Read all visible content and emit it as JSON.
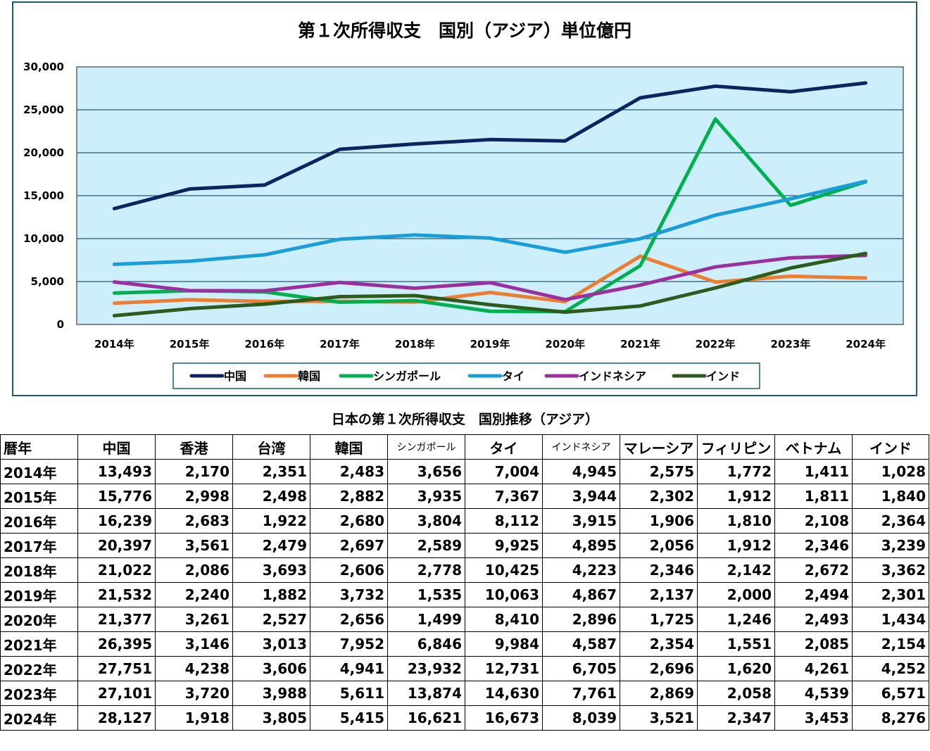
{
  "chart_data": {
    "type": "line",
    "title": "第１次所得収支　国別（アジア）単位億円",
    "categories": [
      "2014年",
      "2015年",
      "2016年",
      "2017年",
      "2018年",
      "2019年",
      "2020年",
      "2021年",
      "2022年",
      "2023年",
      "2024年"
    ],
    "ylim": [
      0,
      30000
    ],
    "yticks": [
      "0",
      "5,000",
      "10,000",
      "15,000",
      "20,000",
      "25,000",
      "30,000"
    ],
    "grid": true,
    "legend": "bottom",
    "plot_background": "#cdeefb",
    "series": [
      {
        "name": "中国",
        "color": "#0c2461",
        "values": [
          13493,
          15776,
          16239,
          20397,
          21022,
          21532,
          21377,
          26395,
          27751,
          27101,
          28127
        ]
      },
      {
        "name": "韓国",
        "color": "#ed7d31",
        "values": [
          2483,
          2882,
          2680,
          2697,
          2606,
          3732,
          2656,
          7952,
          4941,
          5611,
          5415
        ]
      },
      {
        "name": "シンガポール",
        "color": "#00b050",
        "values": [
          3656,
          3935,
          3804,
          2589,
          2778,
          1535,
          1499,
          6846,
          23932,
          13874,
          16621
        ]
      },
      {
        "name": "タイ",
        "color": "#1b9dd9",
        "values": [
          7004,
          7367,
          8112,
          9925,
          10425,
          10063,
          8410,
          9984,
          12731,
          14630,
          16673
        ]
      },
      {
        "name": "インドネシア",
        "color": "#9b2fa0",
        "values": [
          4945,
          3944,
          3915,
          4895,
          4223,
          4867,
          2896,
          4587,
          6705,
          7761,
          8039
        ]
      },
      {
        "name": "インド",
        "color": "#2e5a1c",
        "values": [
          1028,
          1840,
          2364,
          3239,
          3362,
          2301,
          1434,
          2154,
          4252,
          6571,
          8276
        ]
      }
    ]
  },
  "table": {
    "title": "日本の第１次所得収支　国別推移（アジア）",
    "headers": [
      "暦年",
      "中国",
      "香港",
      "台湾",
      "韓国",
      "シンガポール",
      "タイ",
      "インドネシア",
      "マレーシア",
      "フィリピン",
      "ベトナム",
      "インド"
    ],
    "rows": [
      [
        "2014年",
        "13,493",
        "2,170",
        "2,351",
        "2,483",
        "3,656",
        "7,004",
        "4,945",
        "2,575",
        "1,772",
        "1,411",
        "1,028"
      ],
      [
        "2015年",
        "15,776",
        "2,998",
        "2,498",
        "2,882",
        "3,935",
        "7,367",
        "3,944",
        "2,302",
        "1,912",
        "1,811",
        "1,840"
      ],
      [
        "2016年",
        "16,239",
        "2,683",
        "1,922",
        "2,680",
        "3,804",
        "8,112",
        "3,915",
        "1,906",
        "1,810",
        "2,108",
        "2,364"
      ],
      [
        "2017年",
        "20,397",
        "3,561",
        "2,479",
        "2,697",
        "2,589",
        "9,925",
        "4,895",
        "2,056",
        "1,912",
        "2,346",
        "3,239"
      ],
      [
        "2018年",
        "21,022",
        "2,086",
        "3,693",
        "2,606",
        "2,778",
        "10,425",
        "4,223",
        "2,346",
        "2,142",
        "2,672",
        "3,362"
      ],
      [
        "2019年",
        "21,532",
        "2,240",
        "1,882",
        "3,732",
        "1,535",
        "10,063",
        "4,867",
        "2,137",
        "2,000",
        "2,494",
        "2,301"
      ],
      [
        "2020年",
        "21,377",
        "3,261",
        "2,527",
        "2,656",
        "1,499",
        "8,410",
        "2,896",
        "1,725",
        "1,246",
        "2,493",
        "1,434"
      ],
      [
        "2021年",
        "26,395",
        "3,146",
        "3,013",
        "7,952",
        "6,846",
        "9,984",
        "4,587",
        "2,354",
        "1,551",
        "2,085",
        "2,154"
      ],
      [
        "2022年",
        "27,751",
        "4,238",
        "3,606",
        "4,941",
        "23,932",
        "12,731",
        "6,705",
        "2,696",
        "1,620",
        "4,261",
        "4,252"
      ],
      [
        "2023年",
        "27,101",
        "3,720",
        "3,988",
        "5,611",
        "13,874",
        "14,630",
        "7,761",
        "2,869",
        "2,058",
        "4,539",
        "6,571"
      ],
      [
        "2024年",
        "28,127",
        "1,918",
        "3,805",
        "5,415",
        "16,621",
        "16,673",
        "8,039",
        "3,521",
        "2,347",
        "3,453",
        "8,276"
      ]
    ]
  }
}
